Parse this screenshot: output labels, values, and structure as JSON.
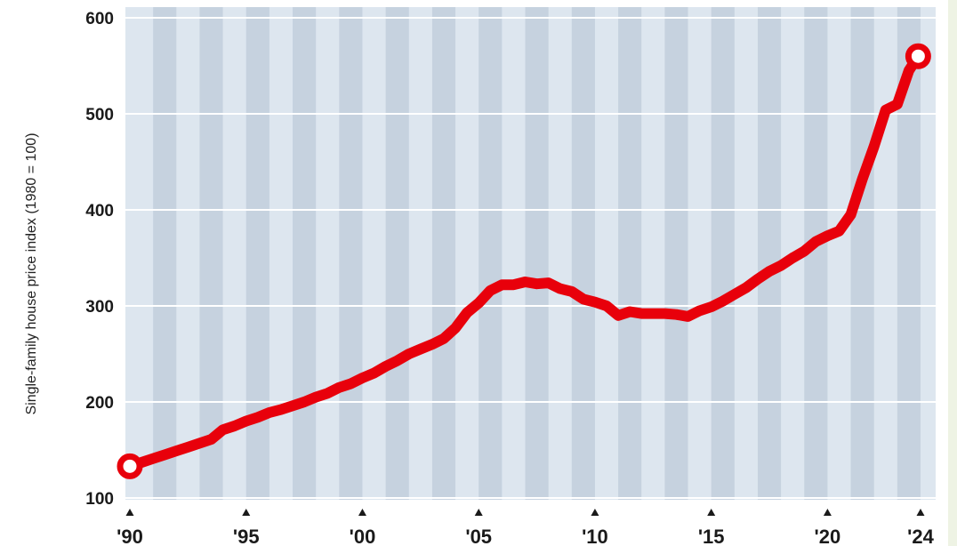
{
  "chart_data": {
    "type": "line",
    "title": "",
    "xlabel": "",
    "ylabel": "Single-family house price index (1980 = 100)",
    "xlim": [
      1990,
      2024.5
    ],
    "ylim": [
      100,
      610
    ],
    "x_ticks": [
      1990,
      1995,
      2000,
      2005,
      2010,
      2015,
      2020,
      2024
    ],
    "x_tick_labels": [
      "'90",
      "'95",
      "'00",
      "'05",
      "'10",
      "'15",
      "'20",
      "'24"
    ],
    "y_ticks": [
      100,
      200,
      300,
      400,
      500,
      600
    ],
    "y_tick_labels": [
      "100",
      "200",
      "300",
      "400",
      "500",
      "600"
    ],
    "grid": true,
    "legend": "none",
    "colors": {
      "line": "#e8000b",
      "stripe_dark": "#c6d2df",
      "stripe_light": "#dde6ef",
      "gridline": "#ffffff",
      "text": "#1a1a1a"
    },
    "series": [
      {
        "x": [
          1990.0,
          1990.5,
          1991.0,
          1991.5,
          1992.0,
          1992.5,
          1993.0,
          1993.5,
          1994.0,
          1994.5,
          1995.0,
          1995.5,
          1996.0,
          1996.5,
          1997.0,
          1997.5,
          1998.0,
          1998.5,
          1999.0,
          1999.5,
          2000.0,
          2000.5,
          2001.0,
          2001.5,
          2002.0,
          2002.5,
          2003.0,
          2003.5,
          2004.0,
          2004.5,
          2005.0,
          2005.5,
          2006.0,
          2006.5,
          2007.0,
          2007.5,
          2008.0,
          2008.5,
          2009.0,
          2009.5,
          2010.0,
          2010.5,
          2011.0,
          2011.5,
          2012.0,
          2012.5,
          2013.0,
          2013.5,
          2014.0,
          2014.5,
          2015.0,
          2015.5,
          2016.0,
          2016.5,
          2017.0,
          2017.5,
          2018.0,
          2018.5,
          2019.0,
          2019.5,
          2020.0,
          2020.5,
          2021.0,
          2021.5,
          2022.0,
          2022.5,
          2023.0,
          2023.5,
          2023.9
        ],
        "values": [
          133,
          137,
          141,
          145,
          149,
          153,
          157,
          161,
          171,
          175,
          180,
          184,
          189,
          192,
          196,
          200,
          205,
          209,
          215,
          219,
          225,
          230,
          237,
          243,
          250,
          255,
          260,
          266,
          277,
          293,
          303,
          316,
          322,
          322,
          325,
          323,
          324,
          318,
          315,
          307,
          304,
          300,
          290,
          294,
          292,
          292,
          292,
          291,
          289,
          295,
          299,
          305,
          312,
          319,
          328,
          336,
          342,
          350,
          357,
          367,
          373,
          378,
          395,
          432,
          466,
          504,
          510,
          545,
          560
        ]
      }
    ]
  }
}
